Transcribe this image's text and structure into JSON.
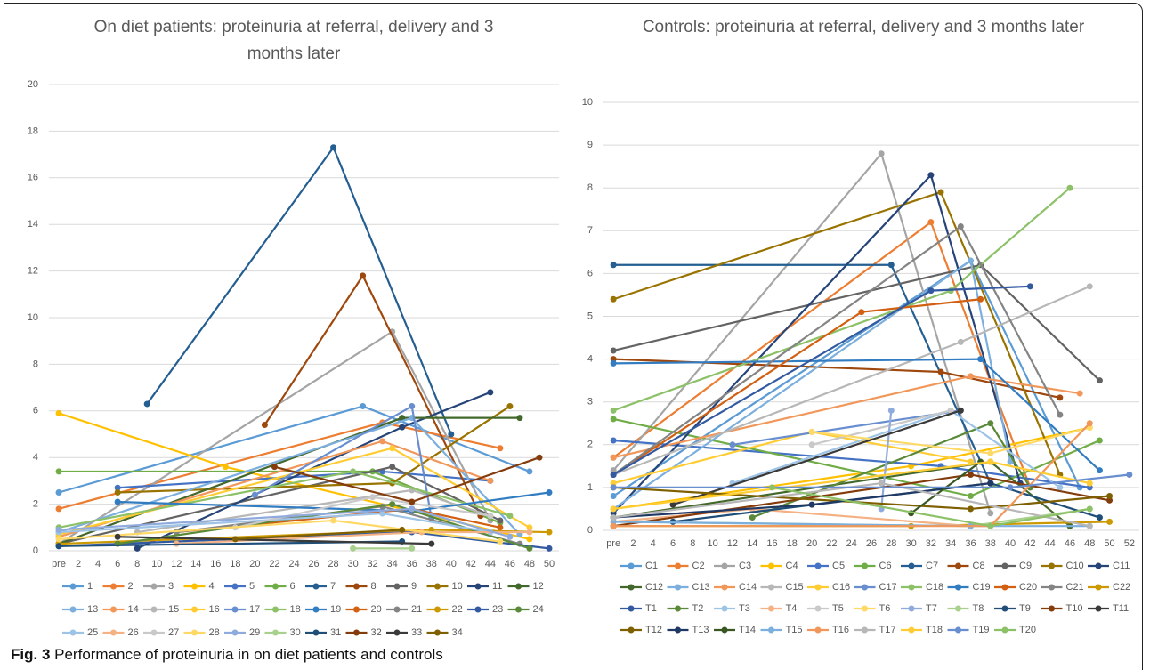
{
  "chart_data": [
    {
      "type": "line",
      "title": "On diet patients: proteinuria at referral, delivery and 3 months later",
      "xlim": [
        -1,
        51
      ],
      "xticks": [
        {
          "value": 0,
          "label": "pre"
        },
        2,
        4,
        6,
        8,
        10,
        12,
        14,
        16,
        18,
        20,
        22,
        24,
        26,
        28,
        30,
        32,
        34,
        36,
        38,
        40,
        42,
        44,
        46,
        48,
        50
      ],
      "ylim": [
        0,
        20
      ],
      "yticks": [
        0,
        2,
        4,
        6,
        8,
        10,
        12,
        14,
        16,
        18,
        20
      ],
      "grid": true,
      "series": [
        {
          "name": "1",
          "color": "#5b9bd5",
          "x": [
            0,
            31,
            48
          ],
          "values": [
            2.5,
            6.2,
            3.4
          ]
        },
        {
          "name": "2",
          "color": "#ed7d31",
          "x": [
            0,
            33,
            45
          ],
          "values": [
            1.8,
            5.5,
            4.4
          ]
        },
        {
          "name": "3",
          "color": "#a5a5a5",
          "x": [
            0,
            34,
            44
          ],
          "values": [
            0.3,
            9.4,
            1.3
          ]
        },
        {
          "name": "4",
          "color": "#ffc000",
          "x": [
            0,
            17,
            48
          ],
          "values": [
            5.9,
            3.6,
            0.5
          ]
        },
        {
          "name": "5",
          "color": "#4472c4",
          "x": [
            6,
            33,
            44
          ],
          "values": [
            2.7,
            3.4,
            3.0
          ]
        },
        {
          "name": "6",
          "color": "#70ad47",
          "x": [
            0,
            32,
            45
          ],
          "values": [
            3.4,
            3.4,
            1.2
          ]
        },
        {
          "name": "7",
          "color": "#255e91",
          "x": [
            9,
            28,
            40
          ],
          "values": [
            6.3,
            17.3,
            5.0
          ]
        },
        {
          "name": "8",
          "color": "#9e480e",
          "x": [
            21,
            31,
            43
          ],
          "values": [
            5.4,
            11.8,
            1.5
          ]
        },
        {
          "name": "9",
          "color": "#636363",
          "x": [
            0,
            34,
            45
          ],
          "values": [
            0.3,
            3.6,
            1.3
          ]
        },
        {
          "name": "10",
          "color": "#997300",
          "x": [
            6,
            34,
            46
          ],
          "values": [
            2.5,
            2.9,
            6.2
          ]
        },
        {
          "name": "11",
          "color": "#264478",
          "x": [
            8,
            35,
            44
          ],
          "values": [
            0.1,
            5.3,
            6.8
          ]
        },
        {
          "name": "12",
          "color": "#43682b",
          "x": [
            0,
            35,
            47
          ],
          "values": [
            0.3,
            5.7,
            5.7
          ]
        },
        {
          "name": "13",
          "color": "#7cafdd",
          "x": [
            0,
            36,
            47
          ],
          "values": [
            0.8,
            5.7,
            0.7
          ]
        },
        {
          "name": "14",
          "color": "#f1975a",
          "x": [
            0,
            33,
            44
          ],
          "values": [
            0.6,
            4.7,
            3.0
          ]
        },
        {
          "name": "15",
          "color": "#b7b7b7",
          "x": [
            8,
            36,
            44
          ],
          "values": [
            0.8,
            2.6,
            1.5
          ]
        },
        {
          "name": "16",
          "color": "#ffcd33",
          "x": [
            0,
            34,
            48
          ],
          "values": [
            0.7,
            4.4,
            1.0
          ]
        },
        {
          "name": "17",
          "color": "#698ed0",
          "x": [
            20,
            36,
            38
          ],
          "values": [
            2.4,
            6.2,
            1.4
          ]
        },
        {
          "name": "18",
          "color": "#8cc168",
          "x": [
            0,
            30,
            46
          ],
          "values": [
            1.0,
            3.4,
            1.5
          ]
        },
        {
          "name": "19",
          "color": "#327dc2",
          "x": [
            6,
            36,
            50
          ],
          "values": [
            2.1,
            1.7,
            2.5
          ]
        },
        {
          "name": "20",
          "color": "#d26012",
          "x": [
            12,
            36,
            45
          ],
          "values": [
            0.8,
            1.8,
            1.0
          ]
        },
        {
          "name": "21",
          "color": "#848484",
          "x": [
            12,
            33,
            47
          ],
          "values": [
            0.8,
            1.9,
            0.3
          ]
        },
        {
          "name": "22",
          "color": "#cc9a00",
          "x": [
            0,
            38,
            50
          ],
          "values": [
            0.3,
            0.9,
            0.8
          ]
        },
        {
          "name": "23",
          "color": "#335aa1",
          "x": [
            0,
            36,
            50
          ],
          "values": [
            0.2,
            0.8,
            0.1
          ]
        },
        {
          "name": "24",
          "color": "#5a8a39",
          "x": [
            6,
            34,
            48
          ],
          "values": [
            0.3,
            2.0,
            0.1
          ]
        },
        {
          "name": "25",
          "color": "#9dc3e6",
          "x": [
            0,
            33,
            44
          ],
          "values": [
            0.8,
            1.6,
            0.8
          ]
        },
        {
          "name": "26",
          "color": "#f4b183",
          "x": [
            12,
            37,
            48
          ],
          "values": [
            0.3,
            0.8,
            0.8
          ]
        },
        {
          "name": "27",
          "color": "#c9c9c9",
          "x": [
            18,
            32,
            44
          ],
          "values": [
            1.0,
            2.3,
            1.5
          ]
        },
        {
          "name": "28",
          "color": "#ffd966",
          "x": [
            0,
            28,
            45
          ],
          "values": [
            0.5,
            1.3,
            0.4
          ]
        },
        {
          "name": "29",
          "color": "#8faadc",
          "x": [
            0,
            36,
            46
          ],
          "values": [
            0.9,
            1.8,
            0.6
          ]
        },
        {
          "name": "30",
          "color": "#a9d18e",
          "x": [
            30,
            36
          ],
          "values": [
            0.1,
            0.1
          ]
        },
        {
          "name": "31",
          "color": "#1f4e79",
          "x": [
            0,
            35
          ],
          "values": [
            0.2,
            0.4
          ]
        },
        {
          "name": "32",
          "color": "#843c0c",
          "x": [
            22,
            36,
            49
          ],
          "values": [
            3.6,
            2.1,
            4.0
          ]
        },
        {
          "name": "33",
          "color": "#3a3a3a",
          "x": [
            6,
            38
          ],
          "values": [
            0.6,
            0.3
          ]
        },
        {
          "name": "34",
          "color": "#7f6000",
          "x": [
            18,
            35
          ],
          "values": [
            0.5,
            0.9
          ]
        }
      ]
    },
    {
      "type": "line",
      "title": "Controls: proteinuria at referral, delivery and 3 months later",
      "xlim": [
        -1,
        53
      ],
      "xticks": [
        {
          "value": 0,
          "label": "pre"
        },
        2,
        4,
        6,
        8,
        10,
        12,
        14,
        16,
        18,
        20,
        22,
        24,
        26,
        28,
        30,
        32,
        34,
        36,
        38,
        40,
        42,
        44,
        46,
        48,
        50,
        52
      ],
      "ylim": [
        0,
        10
      ],
      "yticks": [
        0,
        1,
        2,
        3,
        4,
        5,
        6,
        7,
        8,
        9,
        10
      ],
      "grid": true,
      "series": [
        {
          "name": "C1",
          "color": "#5b9bd5",
          "x": [
            0,
            36,
            47
          ],
          "values": [
            0.8,
            6.3,
            1.0
          ]
        },
        {
          "name": "C2",
          "color": "#ed7d31",
          "x": [
            0,
            32,
            42
          ],
          "values": [
            1.7,
            7.2,
            1.0
          ]
        },
        {
          "name": "C3",
          "color": "#a5a5a5",
          "x": [
            0,
            27,
            38
          ],
          "values": [
            1.4,
            8.8,
            0.4
          ]
        },
        {
          "name": "C4",
          "color": "#ffc000",
          "x": [
            0,
            30,
            48
          ],
          "values": [
            0.5,
            1.5,
            2.4
          ]
        },
        {
          "name": "C5",
          "color": "#4472c4",
          "x": [
            0,
            33,
            48
          ],
          "values": [
            2.1,
            1.5,
            1.0
          ]
        },
        {
          "name": "C6",
          "color": "#70ad47",
          "x": [
            0,
            36,
            49
          ],
          "values": [
            2.6,
            0.8,
            2.1
          ]
        },
        {
          "name": "C7",
          "color": "#255e91",
          "x": [
            0,
            28,
            38
          ],
          "values": [
            6.2,
            6.2,
            1.1
          ]
        },
        {
          "name": "C8",
          "color": "#9e480e",
          "x": [
            0,
            33,
            45
          ],
          "values": [
            4.0,
            3.7,
            3.1
          ]
        },
        {
          "name": "C9",
          "color": "#636363",
          "x": [
            0,
            37,
            49
          ],
          "values": [
            4.2,
            6.2,
            3.5
          ]
        },
        {
          "name": "C10",
          "color": "#997300",
          "x": [
            0,
            33,
            45
          ],
          "values": [
            5.4,
            7.9,
            1.3
          ]
        },
        {
          "name": "C11",
          "color": "#264478",
          "x": [
            0,
            32,
            41
          ],
          "values": [
            0.4,
            8.3,
            1.1
          ]
        },
        {
          "name": "C12",
          "color": "#43682b",
          "x": [
            0,
            38,
            46
          ],
          "values": [
            0.3,
            1.6,
            0.1
          ]
        },
        {
          "name": "C13",
          "color": "#7cafdd",
          "x": [
            0,
            36,
            40
          ],
          "values": [
            0.5,
            6.3,
            1.6
          ]
        },
        {
          "name": "C14",
          "color": "#f1975a",
          "x": [
            0,
            36,
            47
          ],
          "values": [
            1.7,
            3.6,
            3.2
          ]
        },
        {
          "name": "C15",
          "color": "#b7b7b7",
          "x": [
            0,
            35,
            48
          ],
          "values": [
            1.3,
            4.4,
            5.7
          ]
        },
        {
          "name": "C16",
          "color": "#ffcd33",
          "x": [
            0,
            20,
            36
          ],
          "values": [
            1.1,
            2.3,
            1.6
          ]
        },
        {
          "name": "C17",
          "color": "#698ed0",
          "x": [
            12,
            35
          ],
          "values": [
            2.0,
            2.8
          ]
        },
        {
          "name": "C18",
          "color": "#8cc168",
          "x": [
            0,
            34,
            46
          ],
          "values": [
            2.8,
            5.6,
            8.0
          ]
        },
        {
          "name": "C19",
          "color": "#327dc2",
          "x": [
            0,
            37,
            49
          ],
          "values": [
            3.9,
            4.0,
            1.4
          ]
        },
        {
          "name": "C20",
          "color": "#d26012",
          "x": [
            0,
            25,
            37
          ],
          "values": [
            1.3,
            5.1,
            5.4
          ]
        },
        {
          "name": "C21",
          "color": "#848484",
          "x": [
            0,
            35,
            45
          ],
          "values": [
            1.3,
            7.1,
            2.7
          ]
        },
        {
          "name": "C22",
          "color": "#cc9a00",
          "x": [
            0,
            30,
            50
          ],
          "values": [
            0.1,
            0.1,
            0.2
          ]
        },
        {
          "name": "T1",
          "color": "#335aa1",
          "x": [
            0,
            32,
            42
          ],
          "values": [
            1.3,
            5.6,
            5.7
          ]
        },
        {
          "name": "T2",
          "color": "#5a8a39",
          "x": [
            14,
            38,
            42
          ],
          "values": [
            0.3,
            2.5,
            1.0
          ]
        },
        {
          "name": "T3",
          "color": "#9dc3e6",
          "x": [
            12,
            34,
            45
          ],
          "values": [
            1.1,
            2.8,
            1.0
          ]
        },
        {
          "name": "T4",
          "color": "#f4b183",
          "x": [
            0,
            14,
            36
          ],
          "values": [
            0.2,
            0.5,
            0.1
          ]
        },
        {
          "name": "T5",
          "color": "#c9c9c9",
          "x": [
            20,
            34
          ],
          "values": [
            2.0,
            2.8
          ]
        },
        {
          "name": "T6",
          "color": "#ffd966",
          "x": [
            20,
            38,
            48
          ],
          "values": [
            2.3,
            1.8,
            2.4
          ]
        },
        {
          "name": "T7",
          "color": "#8faadc",
          "x": [
            27,
            28
          ],
          "values": [
            0.5,
            2.8
          ]
        },
        {
          "name": "T8",
          "color": "#a9d18e",
          "x": [
            0,
            36,
            48
          ],
          "values": [
            0.2,
            0.1,
            0.5
          ]
        },
        {
          "name": "T9",
          "color": "#1f4e79",
          "x": [
            6,
            38,
            49
          ],
          "values": [
            0.2,
            1.1,
            0.3
          ]
        },
        {
          "name": "T10",
          "color": "#843c0c",
          "x": [
            0,
            36,
            50
          ],
          "values": [
            0.1,
            1.3,
            0.7
          ]
        },
        {
          "name": "T11",
          "color": "#3a3a3a",
          "x": [
            6,
            35
          ],
          "values": [
            0.6,
            2.8
          ]
        },
        {
          "name": "T12",
          "color": "#7f6000",
          "x": [
            0,
            36,
            50
          ],
          "values": [
            1.0,
            0.5,
            0.8
          ]
        },
        {
          "name": "T13",
          "color": "#203864",
          "x": [
            0,
            20,
            38
          ],
          "values": [
            0.3,
            0.6,
            1.1
          ]
        },
        {
          "name": "T14",
          "color": "#385723",
          "x": [
            30,
            37
          ],
          "values": [
            0.4,
            1.6
          ]
        },
        {
          "name": "T15",
          "color": "#7cafdd",
          "x": [
            0,
            36,
            48
          ],
          "values": [
            0.2,
            0.1,
            0.1
          ]
        },
        {
          "name": "T16",
          "color": "#f1975a",
          "x": [
            0,
            38,
            48
          ],
          "values": [
            0.1,
            0.1,
            2.5
          ]
        },
        {
          "name": "T17",
          "color": "#b7b7b7",
          "x": [
            0,
            27,
            48
          ],
          "values": [
            0.3,
            1.1,
            0.1
          ]
        },
        {
          "name": "T18",
          "color": "#ffcd33",
          "x": [
            0,
            38,
            48
          ],
          "values": [
            0.5,
            1.6,
            1.1
          ]
        },
        {
          "name": "T19",
          "color": "#698ed0",
          "x": [
            0,
            40,
            52
          ],
          "values": [
            1.0,
            1.0,
            1.3
          ]
        },
        {
          "name": "T20",
          "color": "#8cc168",
          "x": [
            16,
            38,
            48
          ],
          "values": [
            1.0,
            0.1,
            0.5
          ]
        }
      ]
    }
  ],
  "caption": {
    "label": "Fig. 3",
    "text": "Performance of proteinuria in on diet patients and controls"
  }
}
